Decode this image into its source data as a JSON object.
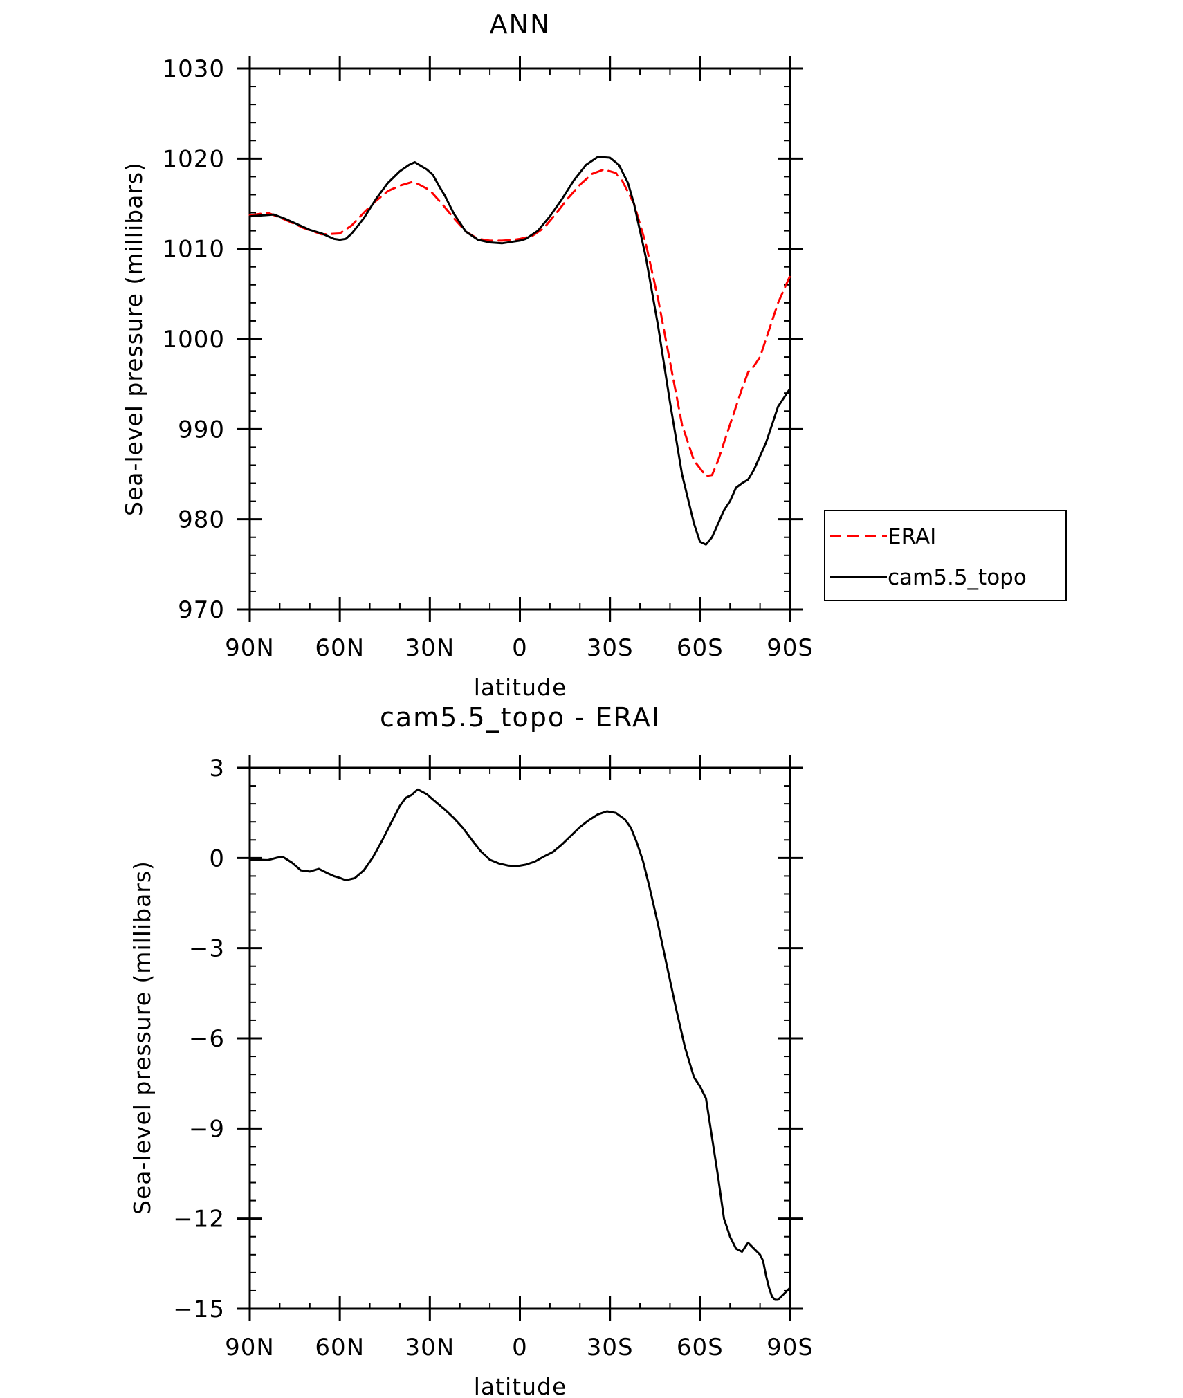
{
  "chart_data": [
    {
      "type": "line",
      "title": "ANN",
      "xlabel": "latitude",
      "ylabel": "Sea-level pressure (millibars)",
      "x_ticks": [
        {
          "value": 90,
          "label": "90N"
        },
        {
          "value": 60,
          "label": "60N"
        },
        {
          "value": 30,
          "label": "30N"
        },
        {
          "value": 0,
          "label": "0"
        },
        {
          "value": -30,
          "label": "30S"
        },
        {
          "value": -60,
          "label": "60S"
        },
        {
          "value": -90,
          "label": "90S"
        }
      ],
      "y_ticks": [
        {
          "value": 1030,
          "label": "1030"
        },
        {
          "value": 1020,
          "label": "1020"
        },
        {
          "value": 1010,
          "label": "1010"
        },
        {
          "value": 1000,
          "label": "1000"
        },
        {
          "value": 990,
          "label": "990"
        },
        {
          "value": 980,
          "label": "980"
        },
        {
          "value": 970,
          "label": "970"
        }
      ],
      "xlim": [
        90,
        -90
      ],
      "ylim": [
        970,
        1030
      ],
      "y_minor_step": 2,
      "x_minor_step": 10,
      "grid": false,
      "legend_position": "right",
      "series": [
        {
          "name": "ERAI",
          "color": "#ff0000",
          "style": "dashed",
          "x": [
            90,
            84,
            78,
            72,
            66,
            60,
            56,
            52,
            48,
            44,
            40,
            36,
            34,
            30,
            26,
            22,
            18,
            14,
            10,
            6,
            2,
            0,
            -4,
            -8,
            -12,
            -16,
            -20,
            -24,
            -28,
            -32,
            -34,
            -38,
            -42,
            -46,
            -50,
            -54,
            -58,
            -62,
            -64,
            -66,
            -68,
            -70,
            -74,
            -76,
            -78,
            -80,
            -82,
            -84,
            -86,
            -88,
            -90
          ],
          "y": [
            1013.7,
            1014.0,
            1013.2,
            1012.3,
            1011.6,
            1011.7,
            1012.6,
            1014.0,
            1015.3,
            1016.4,
            1017.0,
            1017.4,
            1017.2,
            1016.5,
            1015.0,
            1013.4,
            1011.9,
            1011.1,
            1010.9,
            1010.9,
            1011.0,
            1011.1,
            1011.4,
            1012.3,
            1013.9,
            1015.6,
            1017.1,
            1018.3,
            1018.8,
            1018.4,
            1017.6,
            1015.0,
            1010.5,
            1004.5,
            997.5,
            990.5,
            986.5,
            984.8,
            984.9,
            986.5,
            988.5,
            990.5,
            994.5,
            996.3,
            997.0,
            998.0,
            1000.0,
            1002.0,
            1004.0,
            1005.5,
            1007.0
          ]
        },
        {
          "name": "cam5.5_topo",
          "color": "#000000",
          "style": "solid",
          "x": [
            90,
            86,
            82,
            78,
            74,
            70,
            66,
            62,
            60,
            58,
            56,
            52,
            48,
            44,
            40,
            37,
            35,
            33,
            31,
            29,
            27,
            25,
            22,
            18,
            14,
            10,
            6,
            2,
            0,
            -2,
            -6,
            -10,
            -14,
            -18,
            -22,
            -26,
            -30,
            -33,
            -36,
            -38,
            -42,
            -46,
            -50,
            -54,
            -58,
            -60,
            -62,
            -64,
            -66,
            -68,
            -70,
            -72,
            -74,
            -76,
            -78,
            -80,
            -82,
            -84,
            -86,
            -88,
            -90
          ],
          "y": [
            1013.6,
            1013.7,
            1013.8,
            1013.3,
            1012.7,
            1012.1,
            1011.7,
            1011.1,
            1011.0,
            1011.1,
            1011.7,
            1013.4,
            1015.5,
            1017.3,
            1018.6,
            1019.3,
            1019.6,
            1019.2,
            1018.8,
            1018.2,
            1017.0,
            1015.9,
            1013.9,
            1011.9,
            1011.0,
            1010.7,
            1010.6,
            1010.8,
            1010.9,
            1011.1,
            1012.0,
            1013.6,
            1015.5,
            1017.6,
            1019.3,
            1020.2,
            1020.1,
            1019.3,
            1017.3,
            1015.0,
            1009.0,
            1001.5,
            993.0,
            985.0,
            979.5,
            977.5,
            977.2,
            978.0,
            979.5,
            981.0,
            982.0,
            983.5,
            984.0,
            984.4,
            985.5,
            987.0,
            988.5,
            990.5,
            992.5,
            993.5,
            994.5
          ]
        }
      ]
    },
    {
      "type": "line",
      "title": "cam5.5_topo - ERAI",
      "xlabel": "latitude",
      "ylabel": "Sea-level pressure (millibars)",
      "x_ticks": [
        {
          "value": 90,
          "label": "90N"
        },
        {
          "value": 60,
          "label": "60N"
        },
        {
          "value": 30,
          "label": "30N"
        },
        {
          "value": 0,
          "label": "0"
        },
        {
          "value": -30,
          "label": "30S"
        },
        {
          "value": -60,
          "label": "60S"
        },
        {
          "value": -90,
          "label": "90S"
        }
      ],
      "y_ticks": [
        {
          "value": 3,
          "label": "3"
        },
        {
          "value": 0,
          "label": "0"
        },
        {
          "value": -3,
          "label": "−3"
        },
        {
          "value": -6,
          "label": "−6"
        },
        {
          "value": -9,
          "label": "−9"
        },
        {
          "value": -12,
          "label": "−12"
        },
        {
          "value": -15,
          "label": "−15"
        }
      ],
      "xlim": [
        90,
        -90
      ],
      "ylim": [
        -15,
        3
      ],
      "y_minor_step": 0.6,
      "x_minor_step": 10,
      "grid": false,
      "series": [
        {
          "name": "",
          "color": "#000000",
          "style": "solid",
          "x": [
            90,
            84,
            81,
            79,
            76,
            73,
            70,
            67,
            64,
            62,
            60,
            58,
            55,
            52,
            49,
            46,
            43,
            40,
            38,
            36,
            35,
            34,
            31,
            28,
            25,
            22,
            19,
            16,
            13,
            10,
            7,
            4,
            1,
            -2,
            -5,
            -8,
            -11,
            -14,
            -17,
            -20,
            -23,
            -26,
            -29,
            -32,
            -35,
            -37,
            -39,
            -41,
            -43,
            -46,
            -49,
            -52,
            -55,
            -58,
            -60,
            -62,
            -64,
            -66,
            -68,
            -70,
            -72,
            -74,
            -76,
            -78,
            -80,
            -81,
            -82,
            -83,
            -84,
            -85,
            -86,
            -87,
            -88,
            -89,
            -90
          ],
          "y": [
            -0.05,
            -0.07,
            0.01,
            0.04,
            -0.15,
            -0.41,
            -0.45,
            -0.36,
            -0.51,
            -0.6,
            -0.66,
            -0.74,
            -0.67,
            -0.41,
            0.02,
            0.56,
            1.15,
            1.73,
            2.0,
            2.1,
            2.2,
            2.28,
            2.12,
            1.86,
            1.61,
            1.33,
            1.0,
            0.6,
            0.22,
            -0.06,
            -0.18,
            -0.25,
            -0.27,
            -0.22,
            -0.12,
            0.05,
            0.2,
            0.45,
            0.74,
            1.03,
            1.26,
            1.45,
            1.55,
            1.5,
            1.28,
            1.0,
            0.5,
            -0.1,
            -0.9,
            -2.2,
            -3.6,
            -5.0,
            -6.3,
            -7.3,
            -7.6,
            -8.0,
            -9.3,
            -10.6,
            -12.0,
            -12.6,
            -13.0,
            -13.1,
            -12.8,
            -13.0,
            -13.2,
            -13.4,
            -13.9,
            -14.3,
            -14.6,
            -14.7,
            -14.7,
            -14.6,
            -14.5,
            -14.4,
            -14.3
          ]
        }
      ]
    }
  ]
}
